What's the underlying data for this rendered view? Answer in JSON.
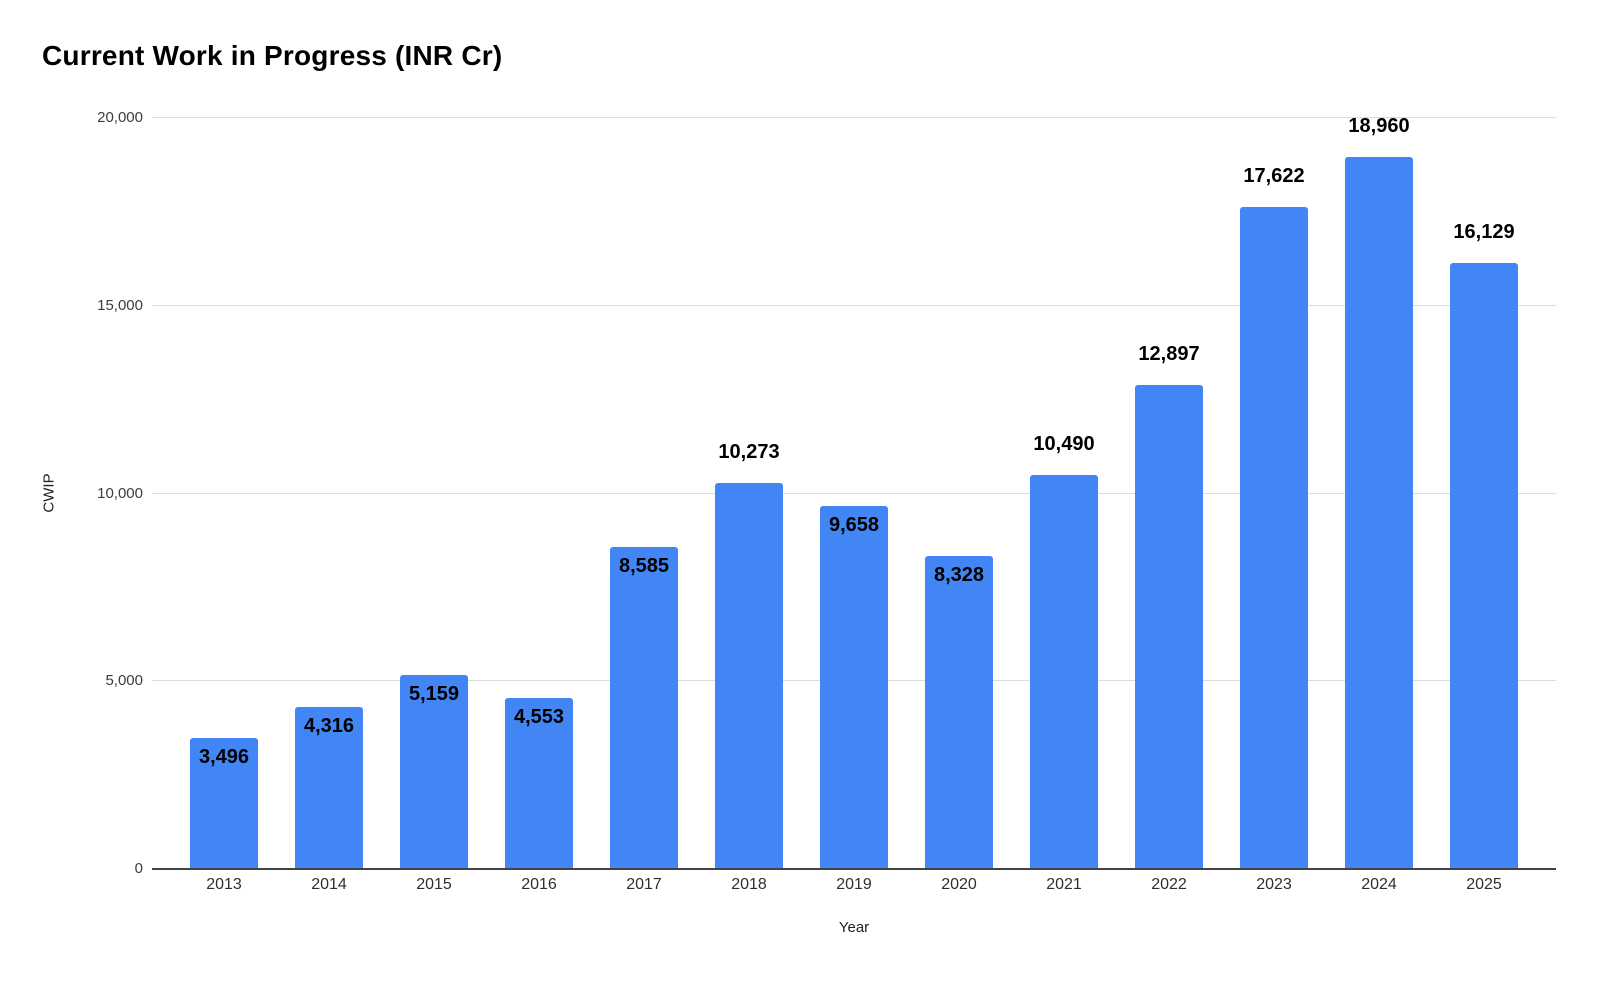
{
  "chart_data": {
    "type": "bar",
    "title": "Current Work in Progress (INR Cr)",
    "xlabel": "Year",
    "ylabel": "CWIP",
    "categories": [
      "2013",
      "2014",
      "2015",
      "2016",
      "2017",
      "2018",
      "2019",
      "2020",
      "2021",
      "2022",
      "2023",
      "2024",
      "2025"
    ],
    "values": [
      3496,
      4316,
      5159,
      4553,
      8585,
      10273,
      9658,
      8328,
      10490,
      12897,
      17622,
      18960,
      16129
    ],
    "value_labels": [
      "3,496",
      "4,316",
      "5,159",
      "4,553",
      "8,585",
      "10,273",
      "9,658",
      "8,328",
      "10,490",
      "12,897",
      "17,622",
      "18,960",
      "16,129"
    ],
    "label_positions": [
      "inside",
      "inside",
      "inside",
      "inside",
      "inside",
      "above",
      "inside",
      "inside",
      "above",
      "above",
      "above",
      "above",
      "above"
    ],
    "ylim": [
      0,
      20000
    ],
    "yticks": [
      0,
      5000,
      10000,
      15000,
      20000
    ],
    "ytick_labels": [
      "0",
      "5,000",
      "10,000",
      "15,000",
      "20,000"
    ],
    "grid": true,
    "legend": "none",
    "colors": {
      "bar": "#4285f4",
      "title": "#000000",
      "value_label": "#000000",
      "axis_title": "#222222",
      "tick_label": "#3c3c3c",
      "gridline": "#dcdcdc",
      "baseline": "#424242",
      "background": "#ffffff"
    }
  }
}
